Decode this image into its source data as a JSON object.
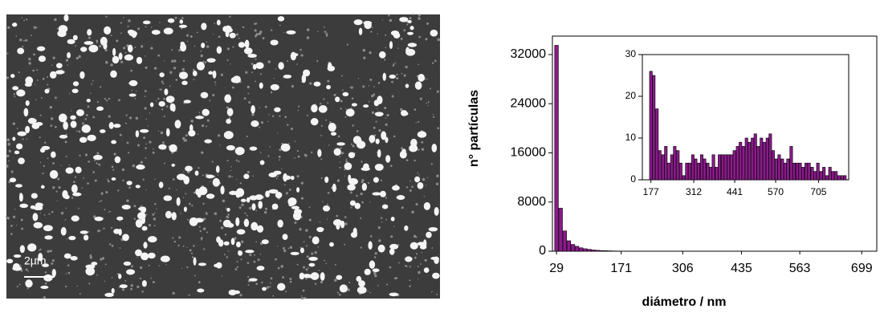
{
  "image_label": "2µm",
  "chart_data": [
    {
      "type": "bar",
      "x_label": "diámetro / nm",
      "y_label": "n° partículas",
      "color": "#8b1a8b",
      "x": [
        29,
        38,
        47,
        56,
        65,
        74,
        83,
        92,
        101,
        110,
        119,
        128,
        137,
        146,
        155,
        164
      ],
      "values": [
        33500,
        7000,
        3300,
        1700,
        1100,
        800,
        550,
        400,
        300,
        200,
        150,
        100,
        80,
        60,
        40,
        30
      ],
      "xlim": [
        20,
        732
      ],
      "xticks": [
        29,
        171,
        306,
        435,
        563,
        699
      ],
      "ylim": [
        0,
        35000
      ],
      "yticks": [
        0,
        8000,
        16000,
        24000,
        32000
      ]
    },
    {
      "type": "bar",
      "color": "#8b1a8b",
      "x": [
        177,
        186,
        196,
        205,
        215,
        224,
        233,
        243,
        252,
        262,
        271,
        280,
        290,
        299,
        309,
        318,
        327,
        337,
        346,
        356,
        365,
        374,
        384,
        393,
        403,
        412,
        421,
        431,
        440,
        450,
        459,
        468,
        478,
        487,
        497,
        506,
        515,
        525,
        534,
        544,
        553,
        562,
        572,
        581,
        591,
        600,
        609,
        619,
        628,
        638,
        647,
        656,
        666,
        675,
        685,
        694,
        703,
        713,
        722,
        732,
        741,
        750,
        760,
        769,
        779,
        788
      ],
      "values": [
        26,
        25,
        17,
        7,
        6,
        8,
        4,
        6,
        8,
        7,
        4,
        1,
        4,
        4,
        6,
        5,
        4,
        6,
        5,
        4,
        3,
        6,
        3,
        6,
        6,
        6,
        6,
        6,
        7,
        8,
        9,
        8,
        10,
        9,
        10,
        11,
        8,
        10,
        9,
        10,
        11,
        7,
        5,
        6,
        5,
        4,
        5,
        8,
        4,
        4,
        4,
        3,
        4,
        4,
        3,
        2,
        4,
        2,
        3,
        1,
        3,
        2,
        2,
        1,
        1,
        1
      ],
      "xlim": [
        150,
        800
      ],
      "xticks": [
        177,
        312,
        441,
        570,
        705
      ],
      "ylim": [
        0,
        30
      ],
      "yticks": [
        0,
        10,
        20,
        30
      ]
    }
  ]
}
